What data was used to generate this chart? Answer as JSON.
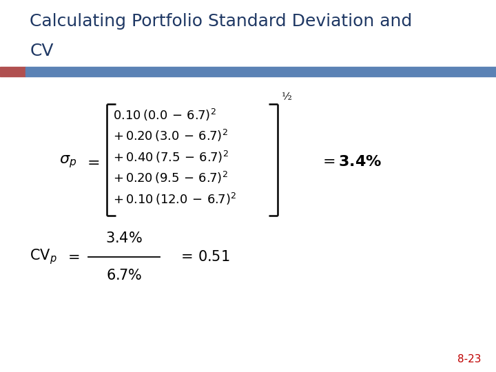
{
  "title_line1": "Calculating Portfolio Standard Deviation and",
  "title_line2": "CV",
  "title_color": "#1F3864",
  "title_fontsize": 18,
  "bar_color_red": "#B05050",
  "bar_color_blue": "#5B82B5",
  "background_color": "#FFFFFF",
  "page_number": "8-23",
  "page_number_color": "#C00000",
  "lines": [
    "  0.10 (0.0 - 6.7)²",
    "+ 0.20 (3.0 - 6.7)²",
    "+ 0.40 (7.5 - 6.7)²",
    "+ 0.20 (9.5 - 6.7)²",
    "+ 0.10 (12.0 - 6.7)²"
  ]
}
